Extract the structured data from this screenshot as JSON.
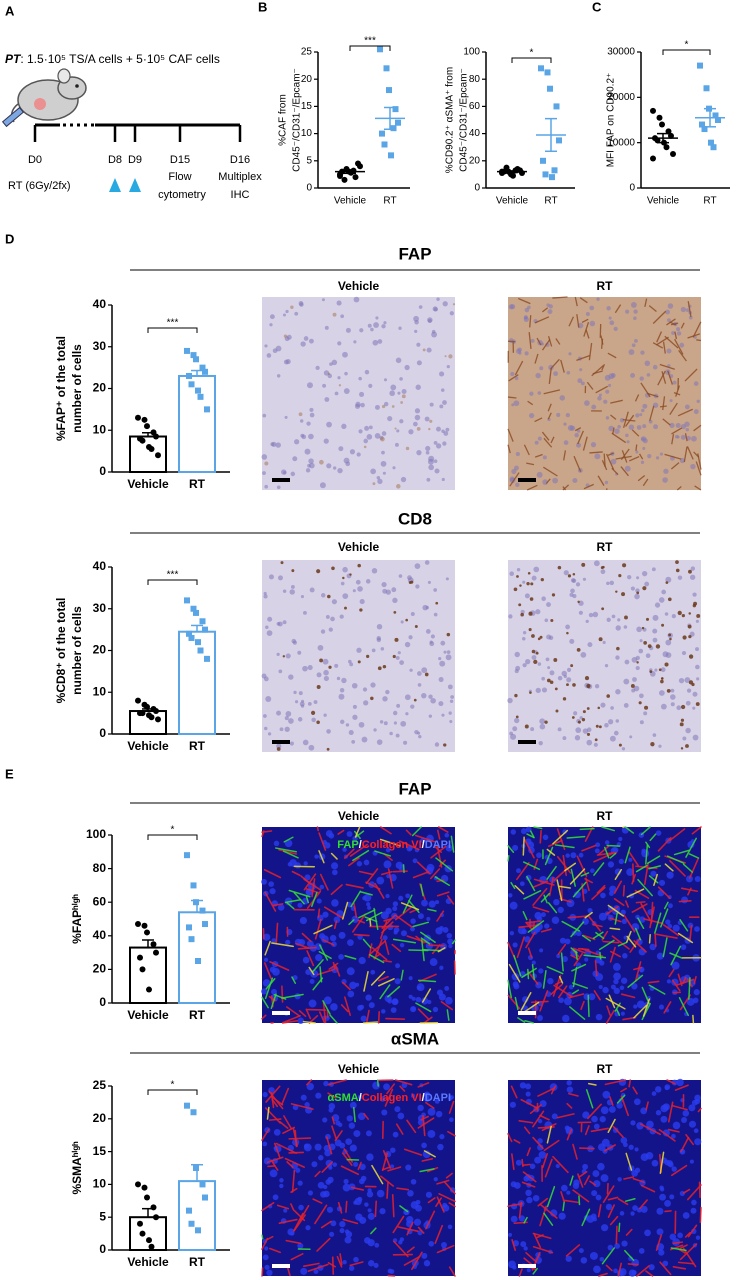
{
  "panel_labels": [
    "A",
    "B",
    "C",
    "D",
    "E"
  ],
  "timeline": {
    "regimen_prefix": "PT",
    "regimen": ": 1.5·10⁵ TS/A cells + 5·10⁵ CAF cells",
    "days": [
      "D0",
      "D8",
      "D9",
      "D15",
      "D16"
    ],
    "treatment": "RT (6Gy/2fx)",
    "readouts": [
      [
        "Flow",
        "cytometry"
      ],
      [
        "Multiplex",
        "IHC"
      ]
    ]
  },
  "sections": [
    {
      "title": "FAP",
      "image_labels": [
        "Vehicle",
        "RT"
      ]
    },
    {
      "title": "CD8",
      "image_labels": [
        "Vehicle",
        "RT"
      ]
    },
    {
      "title": "FAP",
      "image_labels": [
        "Vehicle",
        "RT"
      ],
      "stain": [
        {
          "text": "FAP",
          "color": "#2ee02e"
        },
        {
          "text": "/",
          "color": "#ffffff"
        },
        {
          "text": "Collagen VI",
          "color": "#ff2020"
        },
        {
          "text": "/",
          "color": "#ffffff"
        },
        {
          "text": "DAPI",
          "color": "#5a78ff"
        }
      ]
    },
    {
      "title": "αSMA",
      "image_labels": [
        "Vehicle",
        "RT"
      ],
      "stain": [
        {
          "text": "αSMA",
          "color": "#2ee02e"
        },
        {
          "text": "/",
          "color": "#ffffff"
        },
        {
          "text": "Collagen VI",
          "color": "#ff2020"
        },
        {
          "text": "/",
          "color": "#ffffff"
        },
        {
          "text": "DAPI",
          "color": "#5a78ff"
        }
      ]
    }
  ],
  "chart_data": [
    {
      "type": "dot",
      "ylabel": [
        "%CAF from",
        "CD45⁻/CD31⁻/Epcam⁻"
      ],
      "categories": [
        "Vehicle",
        "RT"
      ],
      "ylim": [
        0,
        25
      ],
      "yticks": [
        0,
        5,
        10,
        15,
        20,
        25
      ],
      "significance": "***",
      "groups": [
        {
          "color": "#000000",
          "marker": "circle",
          "values": [
            2.5,
            3.5,
            3,
            2,
            4.5,
            3,
            1.5,
            2.8,
            3.2,
            4,
            2.2
          ],
          "mean": 3,
          "sem": 0.3
        },
        {
          "color": "#5aa5e6",
          "marker": "square",
          "values": [
            25.5,
            22,
            18,
            14.5,
            12,
            10,
            8,
            6,
            11
          ],
          "mean": 12.8,
          "sem": 2
        }
      ]
    },
    {
      "type": "dot",
      "ylabel": [
        "%CD90.2⁺ αSMA⁺ from",
        "CD45⁻/CD31⁻/Epcam⁻"
      ],
      "categories": [
        "Vehicle",
        "RT"
      ],
      "ylim": [
        0,
        100
      ],
      "yticks": [
        0,
        20,
        40,
        60,
        80,
        100
      ],
      "significance": "*",
      "groups": [
        {
          "color": "#000000",
          "marker": "circle",
          "values": [
            11,
            12,
            10,
            14,
            13,
            12,
            15,
            9,
            13,
            11,
            12
          ],
          "mean": 12,
          "sem": 0.6
        },
        {
          "color": "#5aa5e6",
          "marker": "square",
          "values": [
            88,
            85,
            73,
            60,
            35,
            20,
            10,
            8,
            13
          ],
          "mean": 39,
          "sem": 12
        }
      ]
    },
    {
      "type": "dot",
      "ylabel": [
        "MFI FAP on CD90.2⁺"
      ],
      "categories": [
        "Vehicle",
        "RT"
      ],
      "ylim": [
        0,
        30000
      ],
      "yticks": [
        0,
        10000,
        20000,
        30000
      ],
      "significance": "*",
      "groups": [
        {
          "color": "#000000",
          "marker": "circle",
          "values": [
            17000,
            15500,
            14000,
            12500,
            11500,
            11000,
            10500,
            10000,
            9000,
            7500,
            6500
          ],
          "mean": 11000,
          "sem": 1000
        },
        {
          "color": "#5aa5e6",
          "marker": "square",
          "values": [
            27000,
            22000,
            17500,
            16000,
            15000,
            14000,
            13000,
            10000,
            9000
          ],
          "mean": 15500,
          "sem": 2000
        }
      ]
    },
    {
      "type": "bar",
      "ylabel": [
        "%FAP⁺ of the total",
        "number of cells"
      ],
      "categories": [
        "Vehicle",
        "RT"
      ],
      "ylim": [
        0,
        40
      ],
      "yticks": [
        0,
        10,
        20,
        30,
        40
      ],
      "significance": "***",
      "groups": [
        {
          "color": "#000000",
          "marker": "circle",
          "values": [
            13,
            12.5,
            11,
            9.5,
            8.5,
            8,
            7.5,
            6,
            5.5,
            4
          ],
          "mean": 8.5,
          "sem": 0.9
        },
        {
          "color": "#5aa5e6",
          "marker": "square",
          "values": [
            29,
            28,
            27,
            25,
            24,
            23,
            21,
            19.5,
            18,
            15
          ],
          "mean": 23,
          "sem": 1.3
        }
      ]
    },
    {
      "type": "bar",
      "ylabel": [
        "%CD8⁺ of the total",
        "number of cells"
      ],
      "categories": [
        "Vehicle",
        "RT"
      ],
      "ylim": [
        0,
        40
      ],
      "yticks": [
        0,
        10,
        20,
        30,
        40
      ],
      "significance": "***",
      "groups": [
        {
          "color": "#000000",
          "marker": "circle",
          "values": [
            8,
            7,
            6.5,
            6,
            5.5,
            5,
            5,
            4.5,
            4,
            3.5
          ],
          "mean": 5.5,
          "sem": 0.5
        },
        {
          "color": "#5aa5e6",
          "marker": "square",
          "values": [
            32,
            30,
            29,
            27,
            25,
            24,
            23,
            22,
            20,
            18
          ],
          "mean": 24.5,
          "sem": 1.5
        }
      ]
    },
    {
      "type": "bar",
      "ylabel": [
        "%FAPʰⁱᵍʰ"
      ],
      "categories": [
        "Vehicle",
        "RT"
      ],
      "ylim": [
        0,
        100
      ],
      "yticks": [
        0,
        20,
        40,
        60,
        80,
        100
      ],
      "significance": "*",
      "groups": [
        {
          "color": "#000000",
          "marker": "circle",
          "values": [
            47,
            46,
            42,
            35,
            30,
            27,
            20,
            8
          ],
          "mean": 33,
          "sem": 4.5
        },
        {
          "color": "#5aa5e6",
          "marker": "square",
          "values": [
            88,
            70,
            60,
            55,
            47,
            45,
            38,
            25
          ],
          "mean": 54,
          "sem": 7
        }
      ]
    },
    {
      "type": "bar",
      "ylabel": [
        "%SMAʰⁱᵍʰ"
      ],
      "categories": [
        "Vehicle",
        "RT"
      ],
      "ylim": [
        0,
        25
      ],
      "yticks": [
        0,
        5,
        10,
        15,
        20,
        25
      ],
      "significance": "*",
      "groups": [
        {
          "color": "#000000",
          "marker": "circle",
          "values": [
            10,
            9.5,
            8,
            6.5,
            5,
            4,
            2.5,
            1.5,
            0.5
          ],
          "mean": 5,
          "sem": 1.3
        },
        {
          "color": "#5aa5e6",
          "marker": "square",
          "values": [
            22,
            21,
            12.5,
            10,
            8,
            6,
            4,
            3
          ],
          "mean": 10.5,
          "sem": 2.5
        }
      ]
    }
  ]
}
